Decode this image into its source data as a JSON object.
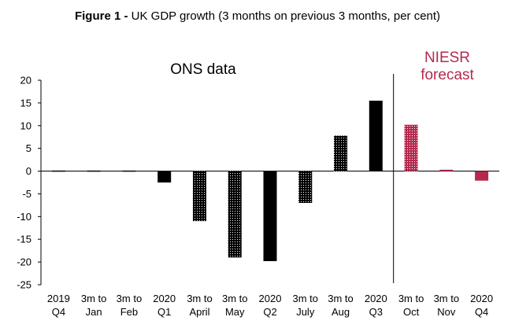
{
  "title": {
    "prefix": "Figure 1 -",
    "text": "UK GDP growth (3 months on previous 3 months, per cent)"
  },
  "chart_data": {
    "type": "bar",
    "categories": [
      [
        "2019",
        "Q4"
      ],
      [
        "3m to",
        "Jan"
      ],
      [
        "3m to",
        "Feb"
      ],
      [
        "2020",
        "Q1"
      ],
      [
        "3m to",
        "April"
      ],
      [
        "3m to",
        "May"
      ],
      [
        "2020",
        "Q2"
      ],
      [
        "3m to",
        "July"
      ],
      [
        "3m to",
        "Aug"
      ],
      [
        "2020",
        "Q3"
      ],
      [
        "3m to",
        "Oct"
      ],
      [
        "3m to",
        "Nov"
      ],
      [
        "2020",
        "Q4"
      ]
    ],
    "values": [
      0.0,
      -0.1,
      -0.1,
      -2.5,
      -11.0,
      -19.0,
      -19.8,
      -7.0,
      7.8,
      15.5,
      10.2,
      0.3,
      -2.1
    ],
    "styles": [
      "solid",
      "solid",
      "solid",
      "solid",
      "dotted",
      "dotted",
      "solid",
      "dotted",
      "dotted",
      "solid",
      "forecast-dotted",
      "forecast-solid",
      "forecast-solid"
    ],
    "ylim": [
      -25,
      20
    ],
    "yticks": [
      20,
      15,
      10,
      5,
      0,
      -5,
      -10,
      -15,
      -20,
      -25
    ],
    "colors": {
      "ons": "#000000",
      "forecast": "#b5294e"
    },
    "annotations": {
      "ons": "ONS data",
      "niesr_line1": "NIESR",
      "niesr_line2": "forecast"
    }
  }
}
